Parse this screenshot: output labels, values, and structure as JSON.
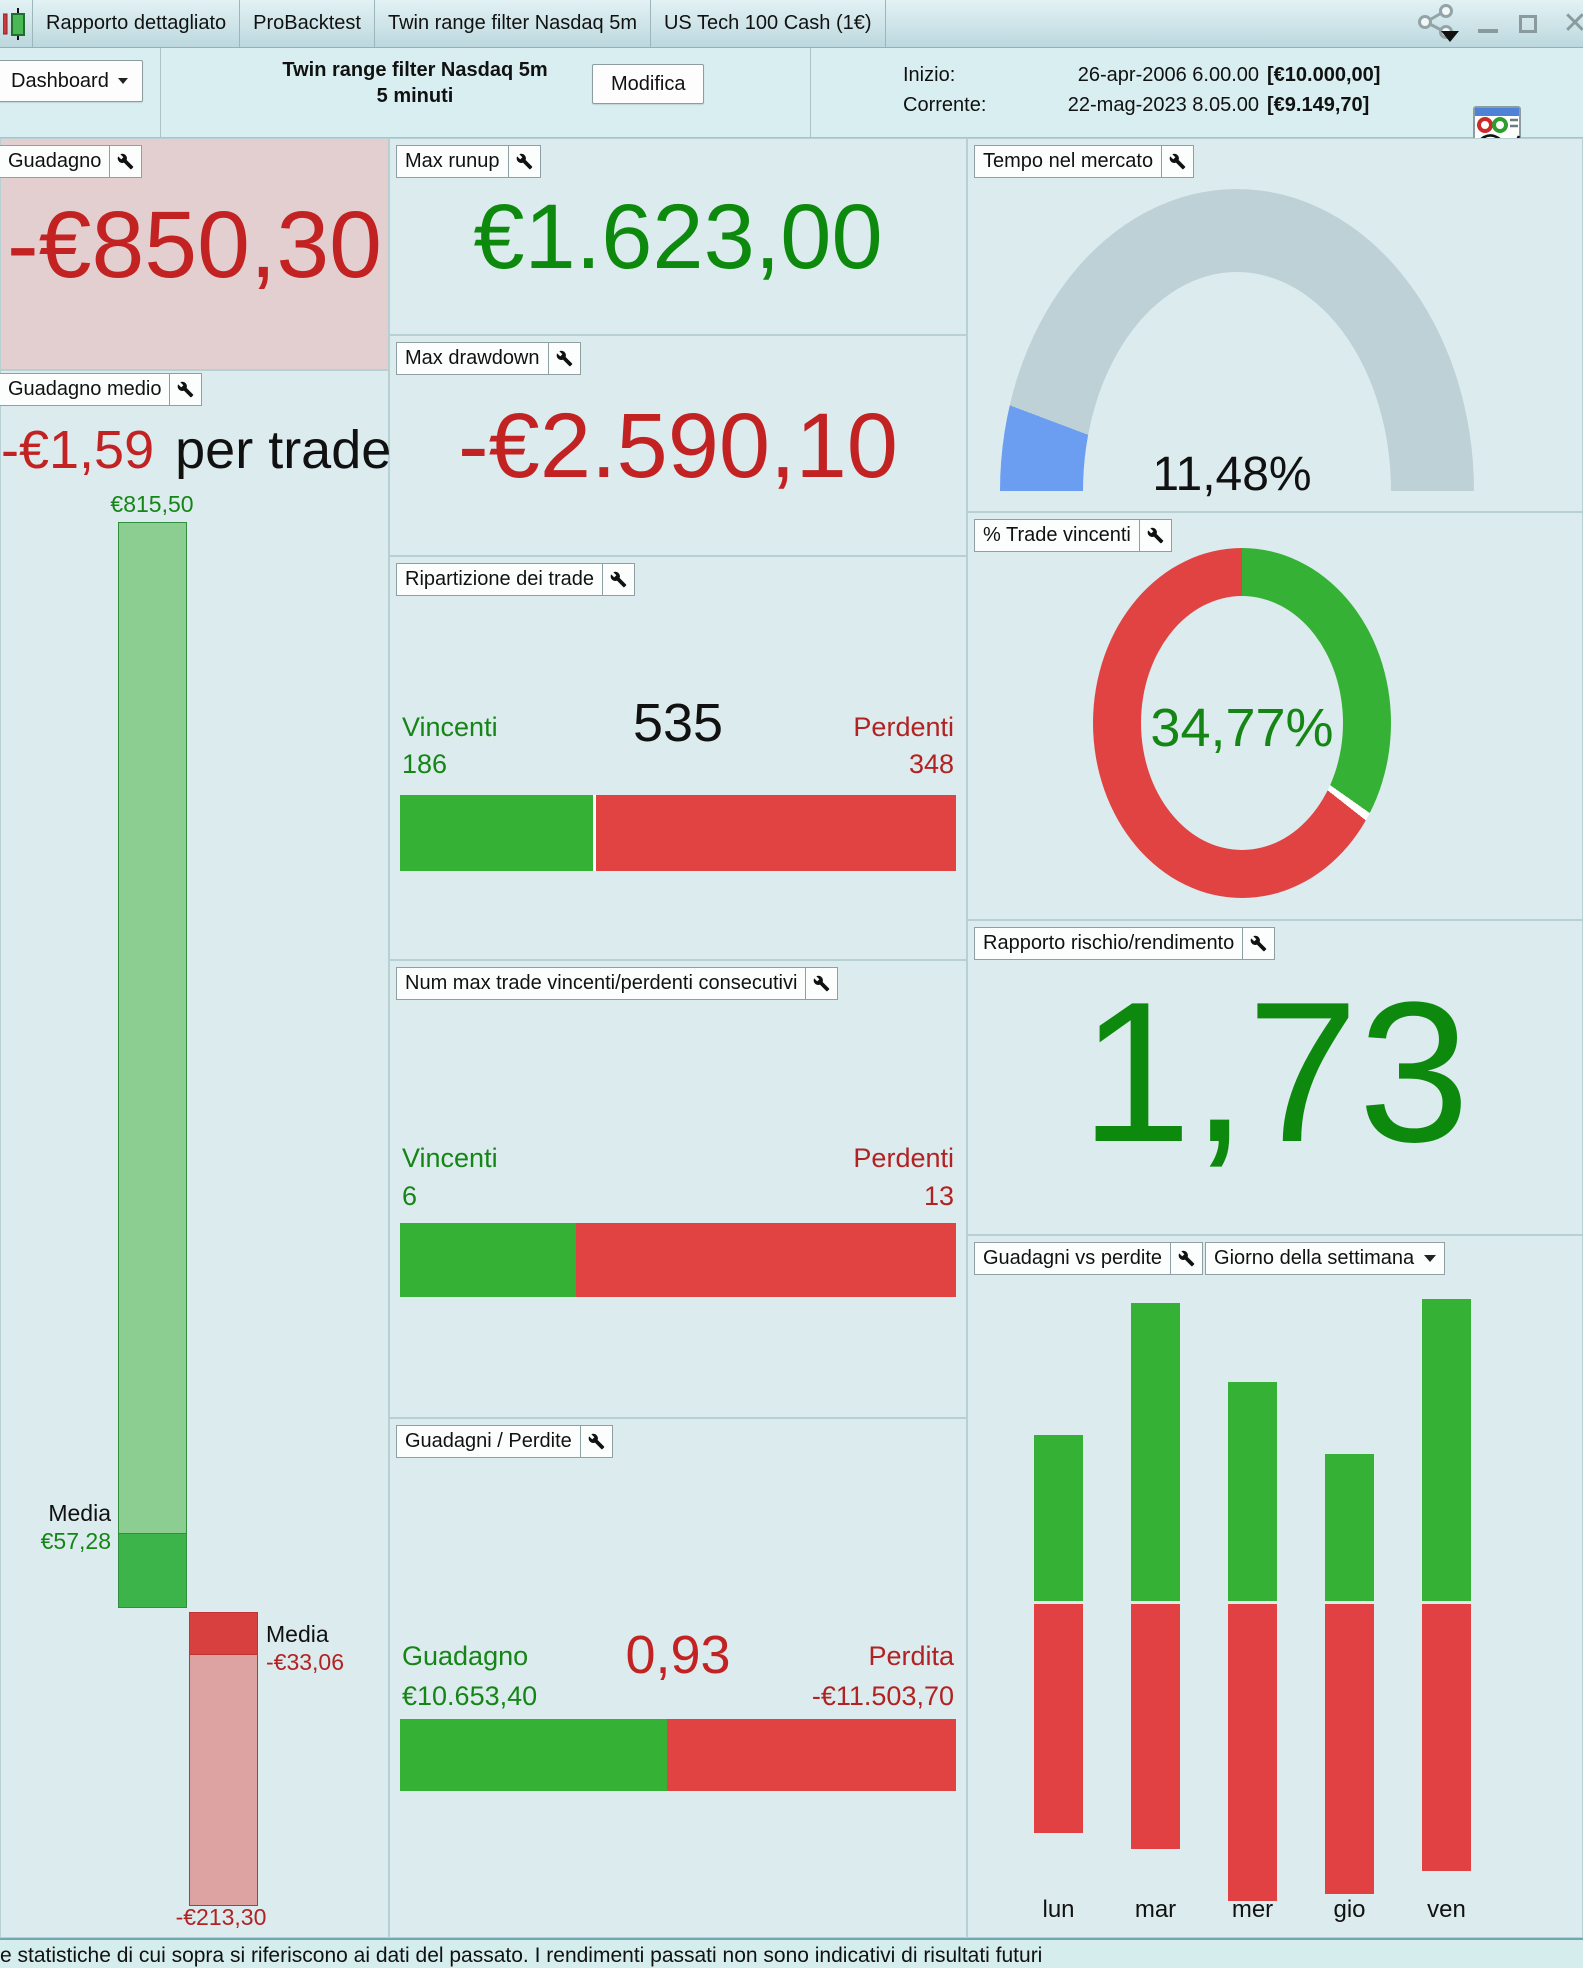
{
  "window": {
    "tabs": [
      "Rapporto dettagliato",
      "ProBacktest",
      "Twin range filter Nasdaq 5m",
      "US Tech 100 Cash (1€)"
    ]
  },
  "toolbar": {
    "dashboard": "Dashboard",
    "strategy_name": "Twin range filter Nasdaq 5m",
    "timeframe": "5 minuti",
    "modifica": "Modifica",
    "inizio_label": "Inizio:",
    "inizio_datetime": "26-apr-2006 6.00.00",
    "inizio_capital": "[€10.000,00]",
    "corrente_label": "Corrente:",
    "corrente_datetime": "22-mag-2023 8.05.00",
    "corrente_capital": "[€9.149,70]"
  },
  "panels": {
    "guadagno": {
      "title": "Guadagno",
      "value": "-€850,30"
    },
    "guadagno_medio": {
      "title": "Guadagno medio",
      "value": "-€1,59",
      "value_suffix": "per trade",
      "max_gain": "€815,50",
      "media_gain_label": "Media",
      "media_gain": "€57,28",
      "media_loss_label": "Media",
      "media_loss": "-€33,06",
      "max_loss": "-€213,30"
    },
    "max_runup": {
      "title": "Max runup",
      "value": "€1.623,00"
    },
    "max_drawdown": {
      "title": "Max drawdown",
      "value": "-€2.590,10"
    },
    "ripartizione": {
      "title": "Ripartizione dei trade",
      "total": "535",
      "win_label": "Vincenti",
      "win_count": "186",
      "loss_label": "Perdenti",
      "loss_count": "348",
      "win_pct": 34.8
    },
    "consecutivi": {
      "title": "Num max trade vincenti/perdenti consecutivi",
      "win_label": "Vincenti",
      "win_count": "6",
      "loss_label": "Perdenti",
      "loss_count": "13",
      "win_pct": 31.6
    },
    "guadagni_perdite": {
      "title": "Guadagni / Perdite",
      "ratio": "0,93",
      "win_label": "Guadagno",
      "win_total": "€10.653,40",
      "loss_label": "Perdita",
      "loss_total": "-€11.503,70",
      "win_pct": 48.1
    },
    "tempo_mercato": {
      "title": "Tempo nel mercato",
      "value": "11,48%",
      "pct": 11.48
    },
    "trade_vincenti": {
      "title": "% Trade vincenti",
      "value": "34,77%",
      "pct": 34.77
    },
    "rischio_rendimento": {
      "title": "Rapporto rischio/rendimento",
      "value": "1,73"
    },
    "guadagni_vs_perdite": {
      "title": "Guadagni vs perdite",
      "selector": "Giorno della settimana",
      "days": [
        "lun",
        "mar",
        "mer",
        "gio",
        "ven"
      ],
      "gains_rel": [
        166,
        298,
        219,
        147,
        302
      ],
      "losses_rel": [
        229,
        245,
        297,
        290,
        267
      ]
    }
  },
  "disclaimer": "e statistiche di cui sopra si riferiscono ai dati del passato. I rendimenti passati non sono indicativi di risultati futuri",
  "colors": {
    "gain_green": "#0d8a0d",
    "loss_red": "#c32222",
    "bar_green": "#35b135",
    "bar_red": "#e14343",
    "gauge_blue": "#6b9df0",
    "gauge_track": "#bdd1d7",
    "panel_bg": "#dcebee",
    "loss_panel_bg": "#e4cfd0"
  }
}
